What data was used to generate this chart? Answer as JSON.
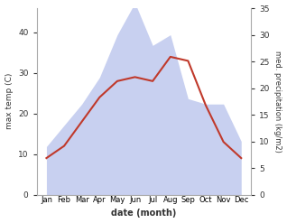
{
  "months": [
    "Jan",
    "Feb",
    "Mar",
    "Apr",
    "May",
    "Jun",
    "Jul",
    "Aug",
    "Sep",
    "Oct",
    "Nov",
    "Dec"
  ],
  "max_temp": [
    9,
    12,
    18,
    24,
    28,
    29,
    28,
    34,
    33,
    22,
    13,
    9
  ],
  "precipitation": [
    9,
    13,
    17,
    22,
    30,
    36,
    28,
    30,
    18,
    17,
    17,
    10
  ],
  "temp_color": "#c0392b",
  "precip_fill_color": "#c8d0f0",
  "temp_ylim": [
    0,
    46
  ],
  "temp_yticks": [
    0,
    10,
    20,
    30,
    40
  ],
  "precip_ylim": [
    0,
    35
  ],
  "precip_yticks": [
    0,
    5,
    10,
    15,
    20,
    25,
    30,
    35
  ],
  "ylabel_left": "max temp (C)",
  "ylabel_right": "med. precipitation (kg/m2)",
  "xlabel": "date (month)",
  "bg_color": "#ffffff"
}
